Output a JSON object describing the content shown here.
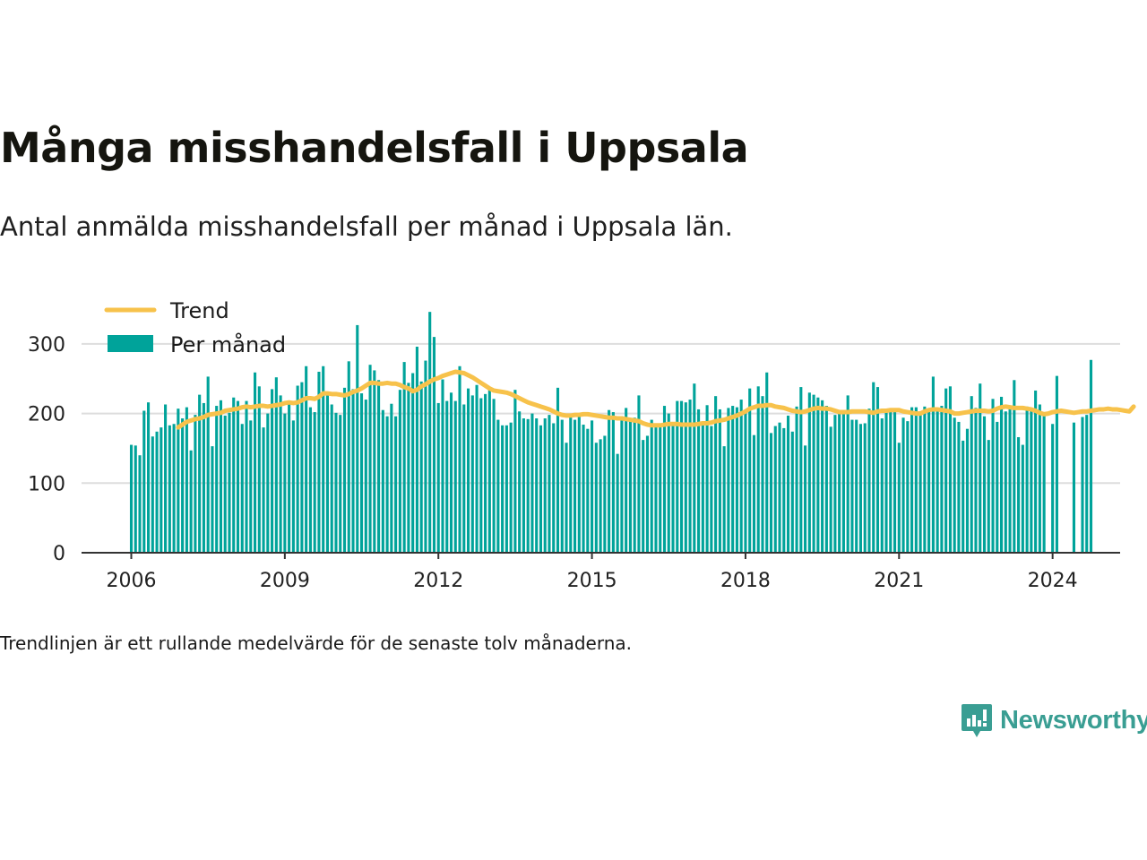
{
  "header": {
    "title": "Många misshandelsfall i Uppsala",
    "subtitle": "Antal anmälda misshandelsfall per månad i Uppsala län."
  },
  "footer": {
    "note": "Trendlinjen är ett rullande medelvärde för de senaste tolv månaderna.",
    "brand": "Newsworthy"
  },
  "colors": {
    "bar": "#00a39a",
    "trend": "#f7c24b",
    "grid": "#dddddd",
    "axis": "#333333",
    "brand": "#3a9e93"
  },
  "chart_data": {
    "type": "bar",
    "title": "Många misshandelsfall i Uppsala",
    "subtitle": "Antal anmälda misshandelsfall per månad i Uppsala län.",
    "xlabel": "",
    "ylabel": "",
    "ylim": [
      0,
      350
    ],
    "xlim": [
      "2006-01",
      "2024-06"
    ],
    "yticks": [
      0,
      100,
      200,
      300
    ],
    "xticks": [
      "2006",
      "2009",
      "2012",
      "2015",
      "2018",
      "2021",
      "2024"
    ],
    "grid": true,
    "legend_position": "top-left",
    "series": [
      {
        "name": "Per månad",
        "kind": "bar",
        "start": "2006-01",
        "values": [
          155,
          154,
          140,
          204,
          216,
          167,
          174,
          180,
          213,
          183,
          185,
          207,
          193,
          209,
          147,
          198,
          227,
          215,
          253,
          153,
          211,
          219,
          197,
          201,
          223,
          218,
          185,
          218,
          190,
          259,
          239,
          180,
          200,
          235,
          252,
          226,
          200,
          218,
          190,
          240,
          245,
          268,
          209,
          202,
          260,
          268,
          231,
          213,
          201,
          198,
          237,
          275,
          235,
          327,
          229,
          220,
          270,
          262,
          248,
          205,
          196,
          214,
          196,
          234,
          274,
          244,
          258,
          296,
          246,
          276,
          346,
          310,
          215,
          249,
          218,
          230,
          218,
          268,
          213,
          236,
          226,
          241,
          222,
          228,
          237,
          221,
          191,
          183,
          183,
          187,
          234,
          203,
          193,
          192,
          200,
          193,
          183,
          193,
          198,
          186,
          237,
          191,
          158,
          197,
          191,
          197,
          184,
          178,
          190,
          158,
          163,
          168,
          205,
          202,
          142,
          196,
          208,
          192,
          194,
          226,
          162,
          168,
          191,
          185,
          181,
          211,
          200,
          186,
          218,
          218,
          216,
          220,
          243,
          206,
          187,
          212,
          182,
          225,
          206,
          153,
          208,
          211,
          209,
          220,
          205,
          236,
          169,
          239,
          225,
          259,
          172,
          182,
          187,
          179,
          197,
          174,
          210,
          238,
          154,
          230,
          227,
          223,
          219,
          211,
          181,
          198,
          201,
          199,
          226,
          191,
          191,
          185,
          186,
          207,
          245,
          238,
          193,
          203,
          204,
          207,
          158,
          194,
          189,
          209,
          209,
          203,
          210,
          206,
          253,
          205,
          211,
          236,
          239,
          194,
          188,
          161,
          178,
          225,
          208,
          243,
          196,
          162,
          221,
          188,
          224,
          203,
          207,
          248,
          166,
          155,
          210,
          208,
          233,
          213,
          199,
          0,
          185,
          254,
          0,
          0,
          0,
          187,
          0,
          195,
          198,
          277
        ]
      },
      {
        "name": "Trend",
        "kind": "line",
        "start": "2006-12",
        "values": [
          180,
          184,
          188,
          190,
          192,
          193,
          195,
          198,
          199,
          200,
          201,
          204,
          205,
          206,
          207,
          209,
          210,
          209,
          210,
          211,
          211,
          210,
          211,
          212,
          213,
          215,
          216,
          215,
          216,
          219,
          222,
          222,
          221,
          224,
          229,
          229,
          228,
          228,
          227,
          226,
          228,
          231,
          233,
          236,
          240,
          244,
          244,
          243,
          243,
          244,
          243,
          243,
          241,
          238,
          236,
          232,
          234,
          239,
          242,
          246,
          249,
          251,
          254,
          256,
          258,
          260,
          259,
          258,
          255,
          252,
          248,
          244,
          240,
          236,
          233,
          232,
          231,
          230,
          228,
          225,
          222,
          219,
          216,
          214,
          212,
          210,
          208,
          206,
          203,
          200,
          198,
          197,
          197,
          198,
          198,
          199,
          199,
          198,
          197,
          196,
          195,
          194,
          194,
          193,
          193,
          192,
          191,
          190,
          189,
          186,
          184,
          183,
          183,
          183,
          184,
          185,
          185,
          185,
          184,
          184,
          184,
          184,
          185,
          186,
          186,
          187,
          189,
          190,
          191,
          193,
          195,
          197,
          200,
          203,
          207,
          209,
          211,
          211,
          212,
          212,
          210,
          209,
          208,
          206,
          204,
          203,
          202,
          203,
          205,
          207,
          208,
          207,
          207,
          206,
          204,
          202,
          202,
          202,
          203,
          203,
          203,
          203,
          202,
          201,
          203,
          204,
          204,
          205,
          205,
          205,
          203,
          202,
          201,
          200,
          200,
          203,
          205,
          206,
          206,
          205,
          204,
          203,
          200,
          200,
          201,
          202,
          203,
          204,
          204,
          204,
          203,
          204,
          207,
          209,
          210,
          209,
          208,
          208,
          208,
          207,
          206,
          204,
          201,
          199,
          200,
          202,
          203,
          204,
          203,
          202,
          201,
          202,
          203,
          203,
          204,
          205,
          206,
          206,
          207,
          206,
          206,
          205,
          204,
          203,
          210
        ]
      }
    ]
  }
}
